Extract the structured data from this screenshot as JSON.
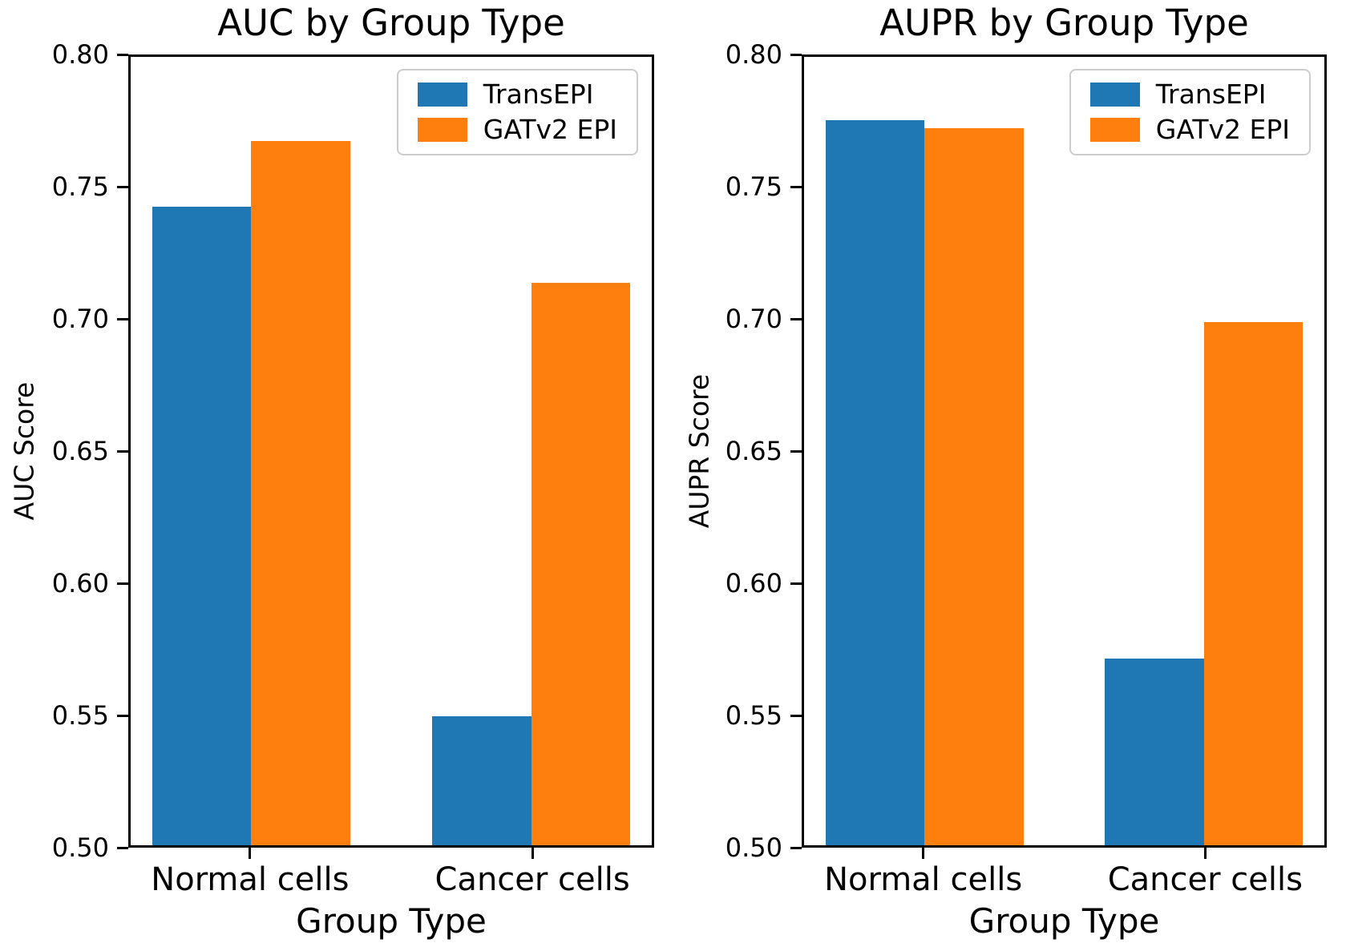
{
  "chart_data": [
    {
      "type": "bar",
      "title": "AUC by Group Type",
      "xlabel": "Group Type",
      "ylabel": "AUC Score",
      "categories": [
        "Normal cells",
        "Cancer cells"
      ],
      "series": [
        {
          "name": "TransEPI",
          "color": "#1f77b4",
          "values": [
            0.743,
            0.549
          ]
        },
        {
          "name": "GATv2 EPI",
          "color": "#ff7f0e",
          "values": [
            0.768,
            0.714
          ]
        }
      ],
      "ylim": [
        0.5,
        0.8
      ],
      "yticks": [
        "0.80",
        "0.75",
        "0.70",
        "0.65",
        "0.60",
        "0.55",
        "0.50"
      ],
      "legend_position": "upper right",
      "grid": false
    },
    {
      "type": "bar",
      "title": "AUPR by Group Type",
      "xlabel": "Group Type",
      "ylabel": "AUPR Score",
      "categories": [
        "Normal cells",
        "Cancer cells"
      ],
      "series": [
        {
          "name": "TransEPI",
          "color": "#1f77b4",
          "values": [
            0.776,
            0.571
          ]
        },
        {
          "name": "GATv2 EPI",
          "color": "#ff7f0e",
          "values": [
            0.773,
            0.699
          ]
        }
      ],
      "ylim": [
        0.5,
        0.8
      ],
      "yticks": [
        "0.80",
        "0.75",
        "0.70",
        "0.65",
        "0.60",
        "0.55",
        "0.50"
      ],
      "legend_position": "upper right",
      "grid": false
    }
  ],
  "style": {
    "series_blue": "#1f77b4",
    "series_orange": "#ff7f0e",
    "spine_color": "#000000",
    "text_color": "#000000",
    "legend_border_color": "#cccccc",
    "background": "#ffffff"
  }
}
